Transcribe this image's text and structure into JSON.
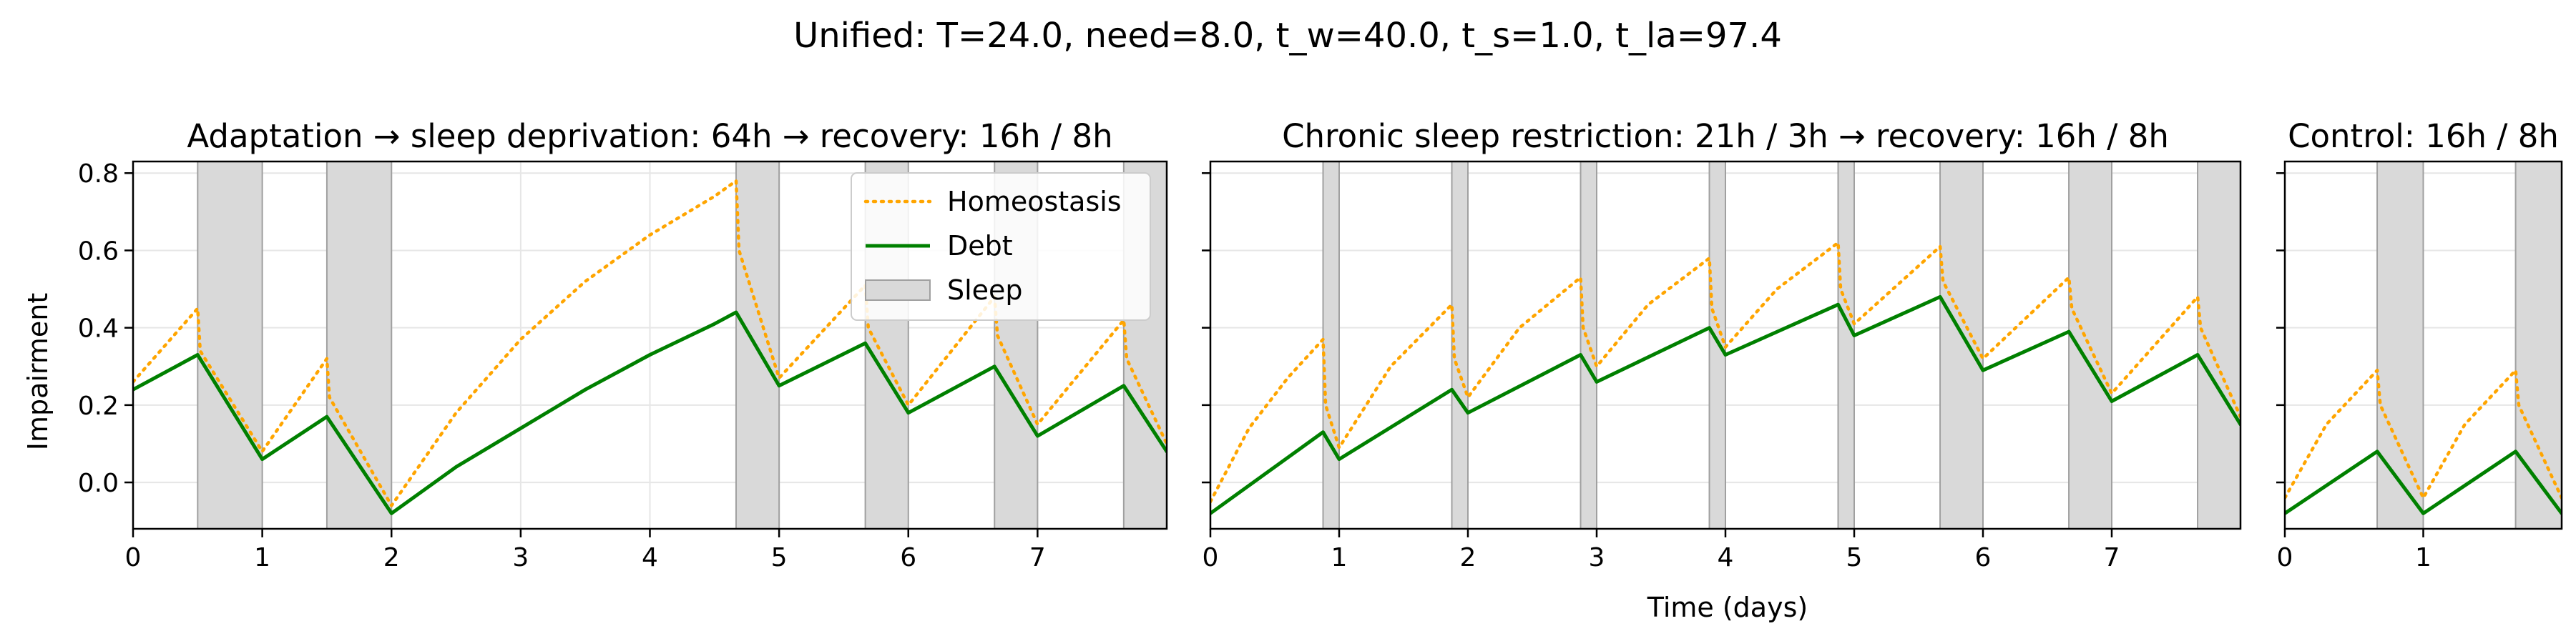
{
  "figure": {
    "title": "Unified: T=24.0, need=8.0, t_w=40.0, t_s=1.0, t_la=97.4",
    "ylabel": "Impairment",
    "xlabel": "Time (days)"
  },
  "colors": {
    "homeostasis": "#ffa500",
    "debt": "#008000",
    "sleep_fill": "#d9d9d9",
    "sleep_edge": "#a0a0a0",
    "grid": "#e6e6e6"
  },
  "legend": {
    "location": "upper right of first panel",
    "items": [
      {
        "label": "Homeostasis",
        "style": "dotted-orange"
      },
      {
        "label": "Debt",
        "style": "solid-green"
      },
      {
        "label": "Sleep",
        "style": "gray-patch"
      }
    ]
  },
  "chart_data": [
    {
      "type": "line",
      "title": "Adaptation → sleep deprivation: 64h → recovery: 16h / 8h",
      "xlabel": "",
      "ylabel": "Impairment",
      "xlim": [
        0,
        8
      ],
      "ylim": [
        -0.12,
        0.83
      ],
      "xticks": [
        0,
        1,
        2,
        3,
        4,
        5,
        6,
        7
      ],
      "yticks": [
        0.0,
        0.2,
        0.4,
        0.6,
        0.8
      ],
      "ytick_labels": [
        "0.0",
        "0.2",
        "0.4",
        "0.6",
        "0.8"
      ],
      "grid": true,
      "legend": "upper right",
      "sleep_intervals": [
        [
          0.5,
          1.0
        ],
        [
          1.5,
          2.0
        ],
        [
          4.667,
          5.0
        ],
        [
          5.667,
          6.0
        ],
        [
          6.667,
          7.0
        ],
        [
          7.667,
          8.0
        ]
      ],
      "series": [
        {
          "name": "Homeostasis",
          "points": [
            [
              0,
              0.26
            ],
            [
              0.5,
              0.45
            ],
            [
              0.52,
              0.34
            ],
            [
              1.0,
              0.08
            ],
            [
              1.5,
              0.32
            ],
            [
              1.52,
              0.22
            ],
            [
              2.0,
              -0.06
            ],
            [
              2.5,
              0.18
            ],
            [
              3.0,
              0.37
            ],
            [
              3.5,
              0.52
            ],
            [
              4.0,
              0.64
            ],
            [
              4.5,
              0.74
            ],
            [
              4.667,
              0.78
            ],
            [
              4.69,
              0.6
            ],
            [
              5.0,
              0.27
            ],
            [
              5.667,
              0.51
            ],
            [
              5.69,
              0.4
            ],
            [
              6.0,
              0.2
            ],
            [
              6.667,
              0.48
            ],
            [
              6.69,
              0.38
            ],
            [
              7.0,
              0.15
            ],
            [
              7.667,
              0.42
            ],
            [
              7.69,
              0.32
            ],
            [
              8.0,
              0.1
            ]
          ]
        },
        {
          "name": "Debt",
          "points": [
            [
              0,
              0.24
            ],
            [
              0.5,
              0.33
            ],
            [
              1.0,
              0.06
            ],
            [
              1.5,
              0.17
            ],
            [
              2.0,
              -0.08
            ],
            [
              2.5,
              0.04
            ],
            [
              3.0,
              0.14
            ],
            [
              3.5,
              0.24
            ],
            [
              4.0,
              0.33
            ],
            [
              4.5,
              0.41
            ],
            [
              4.667,
              0.44
            ],
            [
              5.0,
              0.25
            ],
            [
              5.667,
              0.36
            ],
            [
              6.0,
              0.18
            ],
            [
              6.667,
              0.3
            ],
            [
              7.0,
              0.12
            ],
            [
              7.667,
              0.25
            ],
            [
              8.0,
              0.08
            ]
          ]
        }
      ]
    },
    {
      "type": "line",
      "title": "Chronic sleep restriction: 21h / 3h → recovery: 16h / 8h",
      "xlabel": "Time (days)",
      "ylabel": "",
      "xlim": [
        0,
        8
      ],
      "ylim": [
        -0.12,
        0.83
      ],
      "xticks": [
        0,
        1,
        2,
        3,
        4,
        5,
        6,
        7
      ],
      "grid": true,
      "sleep_intervals": [
        [
          0.875,
          1.0
        ],
        [
          1.875,
          2.0
        ],
        [
          2.875,
          3.0
        ],
        [
          3.875,
          4.0
        ],
        [
          4.875,
          5.0
        ],
        [
          5.667,
          6.0
        ],
        [
          6.667,
          7.0
        ],
        [
          7.667,
          8.0
        ]
      ],
      "series": [
        {
          "name": "Homeostasis",
          "points": [
            [
              0,
              -0.05
            ],
            [
              0.3,
              0.14
            ],
            [
              0.6,
              0.27
            ],
            [
              0.875,
              0.37
            ],
            [
              0.895,
              0.2
            ],
            [
              1.0,
              0.09
            ],
            [
              1.4,
              0.3
            ],
            [
              1.875,
              0.46
            ],
            [
              1.895,
              0.32
            ],
            [
              2.0,
              0.22
            ],
            [
              2.4,
              0.4
            ],
            [
              2.875,
              0.53
            ],
            [
              2.895,
              0.4
            ],
            [
              3.0,
              0.3
            ],
            [
              3.4,
              0.46
            ],
            [
              3.875,
              0.58
            ],
            [
              3.895,
              0.45
            ],
            [
              4.0,
              0.35
            ],
            [
              4.4,
              0.5
            ],
            [
              4.875,
              0.62
            ],
            [
              4.895,
              0.5
            ],
            [
              5.0,
              0.41
            ],
            [
              5.667,
              0.61
            ],
            [
              5.69,
              0.52
            ],
            [
              6.0,
              0.32
            ],
            [
              6.667,
              0.53
            ],
            [
              6.69,
              0.45
            ],
            [
              7.0,
              0.23
            ],
            [
              7.667,
              0.48
            ],
            [
              7.69,
              0.4
            ],
            [
              8.0,
              0.17
            ]
          ]
        },
        {
          "name": "Debt",
          "points": [
            [
              0,
              -0.08
            ],
            [
              0.875,
              0.13
            ],
            [
              1.0,
              0.06
            ],
            [
              1.875,
              0.24
            ],
            [
              2.0,
              0.18
            ],
            [
              2.875,
              0.33
            ],
            [
              3.0,
              0.26
            ],
            [
              3.875,
              0.4
            ],
            [
              4.0,
              0.33
            ],
            [
              4.875,
              0.46
            ],
            [
              5.0,
              0.38
            ],
            [
              5.667,
              0.48
            ],
            [
              6.0,
              0.29
            ],
            [
              6.667,
              0.39
            ],
            [
              7.0,
              0.21
            ],
            [
              7.667,
              0.33
            ],
            [
              8.0,
              0.15
            ]
          ]
        }
      ]
    },
    {
      "type": "line",
      "title": "Control: 16h / 8h",
      "xlabel": "",
      "ylabel": "",
      "xlim": [
        0,
        2
      ],
      "ylim": [
        -0.12,
        0.83
      ],
      "xticks": [
        0,
        1
      ],
      "grid": true,
      "sleep_intervals": [
        [
          0.667,
          1.0
        ],
        [
          1.667,
          2.0
        ]
      ],
      "series": [
        {
          "name": "Homeostasis",
          "points": [
            [
              0,
              -0.04
            ],
            [
              0.3,
              0.15
            ],
            [
              0.667,
              0.29
            ],
            [
              0.69,
              0.2
            ],
            [
              1.0,
              -0.04
            ],
            [
              1.3,
              0.15
            ],
            [
              1.667,
              0.29
            ],
            [
              1.69,
              0.2
            ],
            [
              2.0,
              -0.04
            ]
          ]
        },
        {
          "name": "Debt",
          "points": [
            [
              0,
              -0.08
            ],
            [
              0.667,
              0.08
            ],
            [
              1.0,
              -0.08
            ],
            [
              1.667,
              0.08
            ],
            [
              2.0,
              -0.08
            ]
          ]
        }
      ]
    }
  ]
}
